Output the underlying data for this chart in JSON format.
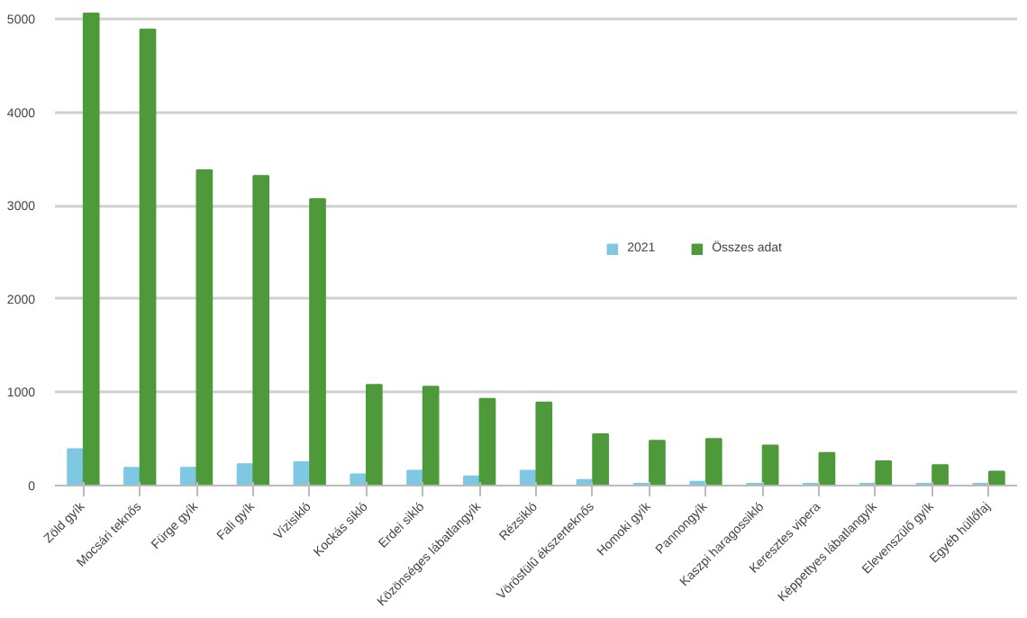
{
  "chart_data": {
    "type": "bar",
    "categories": [
      "Zöld gyík",
      "Mocsári teknős",
      "Fürge gyík",
      "Fali gyík",
      "Vízisikló",
      "Kockás sikló",
      "Erdei sikló",
      "Közönséges lábatlangyík",
      "Rézsikló",
      "Vörösfülű ékszerteknős",
      "Homoki gyík",
      "Pannongyík",
      "Kaszpi haragossikló",
      "Keresztes vipera",
      "Képpettyes lábatlangyík",
      "Elevenszülő gyík",
      "Egyéb hüllőfaj"
    ],
    "series": [
      {
        "name": "2021",
        "color": "#7ec8e3",
        "values": [
          390,
          190,
          190,
          230,
          250,
          120,
          160,
          100,
          160,
          60,
          20,
          40,
          20,
          20,
          20,
          20,
          20
        ]
      },
      {
        "name": "Összes adat",
        "color": "#4e9a3a",
        "values": [
          5060,
          4890,
          3380,
          3320,
          3070,
          1080,
          1060,
          930,
          890,
          550,
          480,
          500,
          430,
          350,
          260,
          220,
          150
        ]
      }
    ],
    "ylim": [
      0,
      5080
    ],
    "yticks": [
      0,
      1000,
      2000,
      3000,
      4000,
      5000
    ],
    "grid": "y",
    "legend": "right"
  }
}
